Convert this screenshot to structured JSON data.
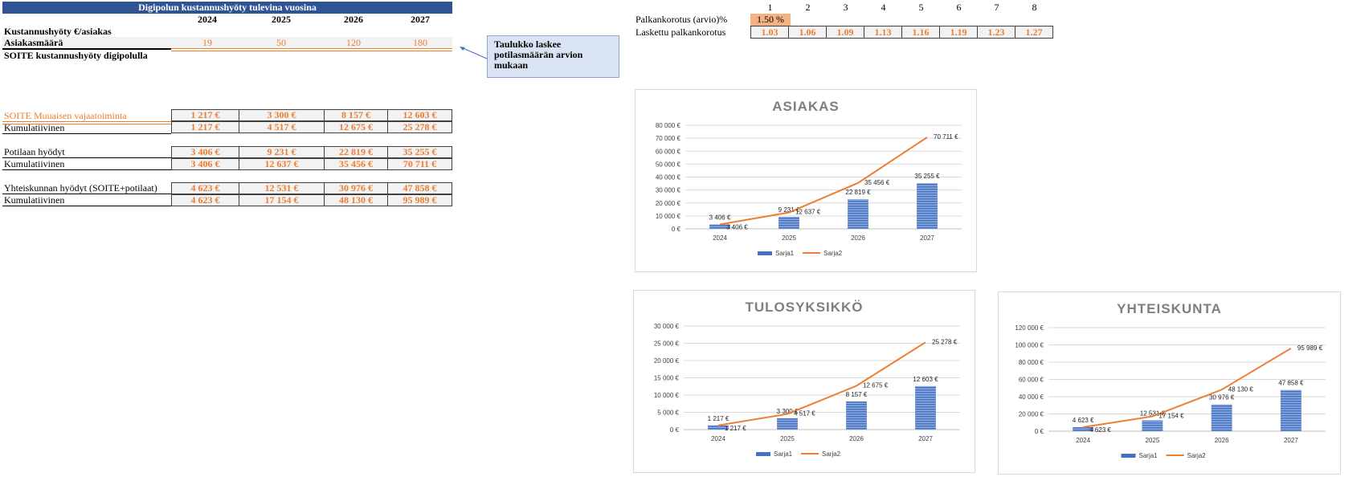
{
  "table": {
    "title": "Digipolun kustannushyöty tulevina vuosina",
    "years": [
      "2024",
      "2025",
      "2026",
      "2027"
    ],
    "row_cost_per_client": "Kustannushyöty €/asiakas",
    "row_client_count": "Asiakasmäärä",
    "client_counts": [
      "19",
      "50",
      "120",
      "180"
    ],
    "section_title": "SOITE kustannushyöty digipolulla",
    "groups": [
      {
        "label": "SOITE Muuaisen vajaatoiminta",
        "values": [
          "1 217 €",
          "3 300 €",
          "8 157 €",
          "12 603 €"
        ],
        "cum_label": "Kumulatiivinen",
        "cum_values": [
          "1 217 €",
          "4 517 €",
          "12 675 €",
          "25 278 €"
        ]
      },
      {
        "label": "Potilaan hyödyt",
        "values": [
          "3 406 €",
          "9 231 €",
          "22 819 €",
          "35 255 €"
        ],
        "cum_label": "Kumulatiivinen",
        "cum_values": [
          "3 406 €",
          "12 637 €",
          "35 456 €",
          "70 711 €"
        ]
      },
      {
        "label": "Yhteiskunnan hyödyt (SOITE+potilaat)",
        "values": [
          "4 623 €",
          "12 531 €",
          "30 976 €",
          "47 858 €"
        ],
        "cum_label": "Kumulatiivinen",
        "cum_values": [
          "4 623 €",
          "17 154 €",
          "48 130 €",
          "95 989 €"
        ]
      }
    ]
  },
  "callout": {
    "text": "Taulukko laskee potilasmäärän arvion mukaan"
  },
  "salary": {
    "label_raise": "Palkankorotus (arvio)%",
    "raise_value": "1.50 %",
    "label_calc": "Laskettu palkankorotus",
    "indices": [
      "1",
      "2",
      "3",
      "4",
      "5",
      "6",
      "7",
      "8"
    ],
    "calc_values": [
      "1.03",
      "1.06",
      "1.09",
      "1.13",
      "1.16",
      "1.19",
      "1.23",
      "1.27"
    ]
  },
  "chart_data": [
    {
      "type": "bar",
      "title": "ASIAKAS",
      "categories": [
        "2024",
        "2025",
        "2026",
        "2027"
      ],
      "ylim": [
        0,
        80000
      ],
      "yticks": [
        "0 €",
        "10 000 €",
        "20 000 €",
        "30 000 €",
        "40 000 €",
        "50 000 €",
        "60 000 €",
        "70 000 €",
        "80 000 €"
      ],
      "series": [
        {
          "name": "Sarja1",
          "kind": "bar",
          "values": [
            3406,
            9231,
            22819,
            35255
          ],
          "labels": [
            "3 406 €",
            "9 231 €",
            "22 819 €",
            "35 255 €"
          ]
        },
        {
          "name": "Sarja2",
          "kind": "line",
          "values": [
            3406,
            12637,
            35456,
            70711
          ],
          "labels": [
            "3 406 €",
            "12 637 €",
            "35 456 €",
            "70 711 €"
          ]
        }
      ],
      "legend": "bottom",
      "grid": true
    },
    {
      "type": "bar",
      "title": "TULOSYKSIKKÖ",
      "categories": [
        "2024",
        "2025",
        "2026",
        "2027"
      ],
      "ylim": [
        0,
        30000
      ],
      "yticks": [
        "0 €",
        "5 000 €",
        "10 000 €",
        "15 000 €",
        "20 000 €",
        "25 000 €",
        "30 000 €"
      ],
      "series": [
        {
          "name": "Sarja1",
          "kind": "bar",
          "values": [
            1217,
            3300,
            8157,
            12603
          ],
          "labels": [
            "1 217 €",
            "3 300 €",
            "8 157 €",
            "12 603 €"
          ]
        },
        {
          "name": "Sarja2",
          "kind": "line",
          "values": [
            1217,
            4517,
            12675,
            25278
          ],
          "labels": [
            "1 217 €",
            "4 517 €",
            "12 675 €",
            "25 278 €"
          ]
        }
      ],
      "legend": "bottom",
      "grid": true
    },
    {
      "type": "bar",
      "title": "YHTEISKUNTA",
      "categories": [
        "2024",
        "2025",
        "2026",
        "2027"
      ],
      "ylim": [
        0,
        120000
      ],
      "yticks": [
        "0 €",
        "20 000 €",
        "40 000 €",
        "60 000 €",
        "80 000 €",
        "100 000 €",
        "120 000 €"
      ],
      "series": [
        {
          "name": "Sarja1",
          "kind": "bar",
          "values": [
            4623,
            12531,
            30976,
            47858
          ],
          "labels": [
            "4 623 €",
            "12 531 €",
            "30 976 €",
            "47 858 €"
          ]
        },
        {
          "name": "Sarja2",
          "kind": "line",
          "values": [
            4623,
            17154,
            48130,
            95989
          ],
          "labels": [
            "4 623 €",
            "17 154 €",
            "48 130 €",
            "95 989 €"
          ]
        }
      ],
      "legend": "bottom",
      "grid": true
    }
  ],
  "colors": {
    "bar": "#4472c4",
    "line": "#ed7d31",
    "title_bar": "#2f5496",
    "value_text": "#ed7d31"
  }
}
